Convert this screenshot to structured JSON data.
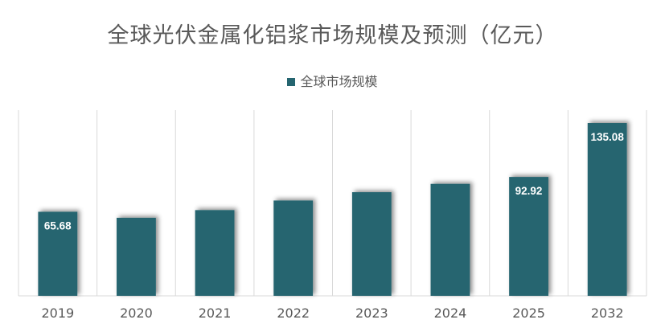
{
  "chart_data": {
    "type": "bar",
    "title": "全球光伏金属化铝浆市场规模及预测（亿元）",
    "xlabel": "",
    "ylabel": "",
    "categories": [
      "2019",
      "2020",
      "2021",
      "2022",
      "2023",
      "2024",
      "2025",
      "2032"
    ],
    "series": [
      {
        "name": "全球市场规模",
        "values": [
          65.68,
          61.0,
          67.0,
          74.5,
          81.0,
          87.5,
          92.92,
          135.08
        ],
        "color": "#256570"
      }
    ],
    "data_labels": [
      "65.68",
      "",
      "",
      "",
      "",
      "",
      "92.92",
      "135.08"
    ],
    "ylim": [
      0,
      142
    ],
    "grid": "vertical category separators",
    "legend_position": "top-center"
  }
}
